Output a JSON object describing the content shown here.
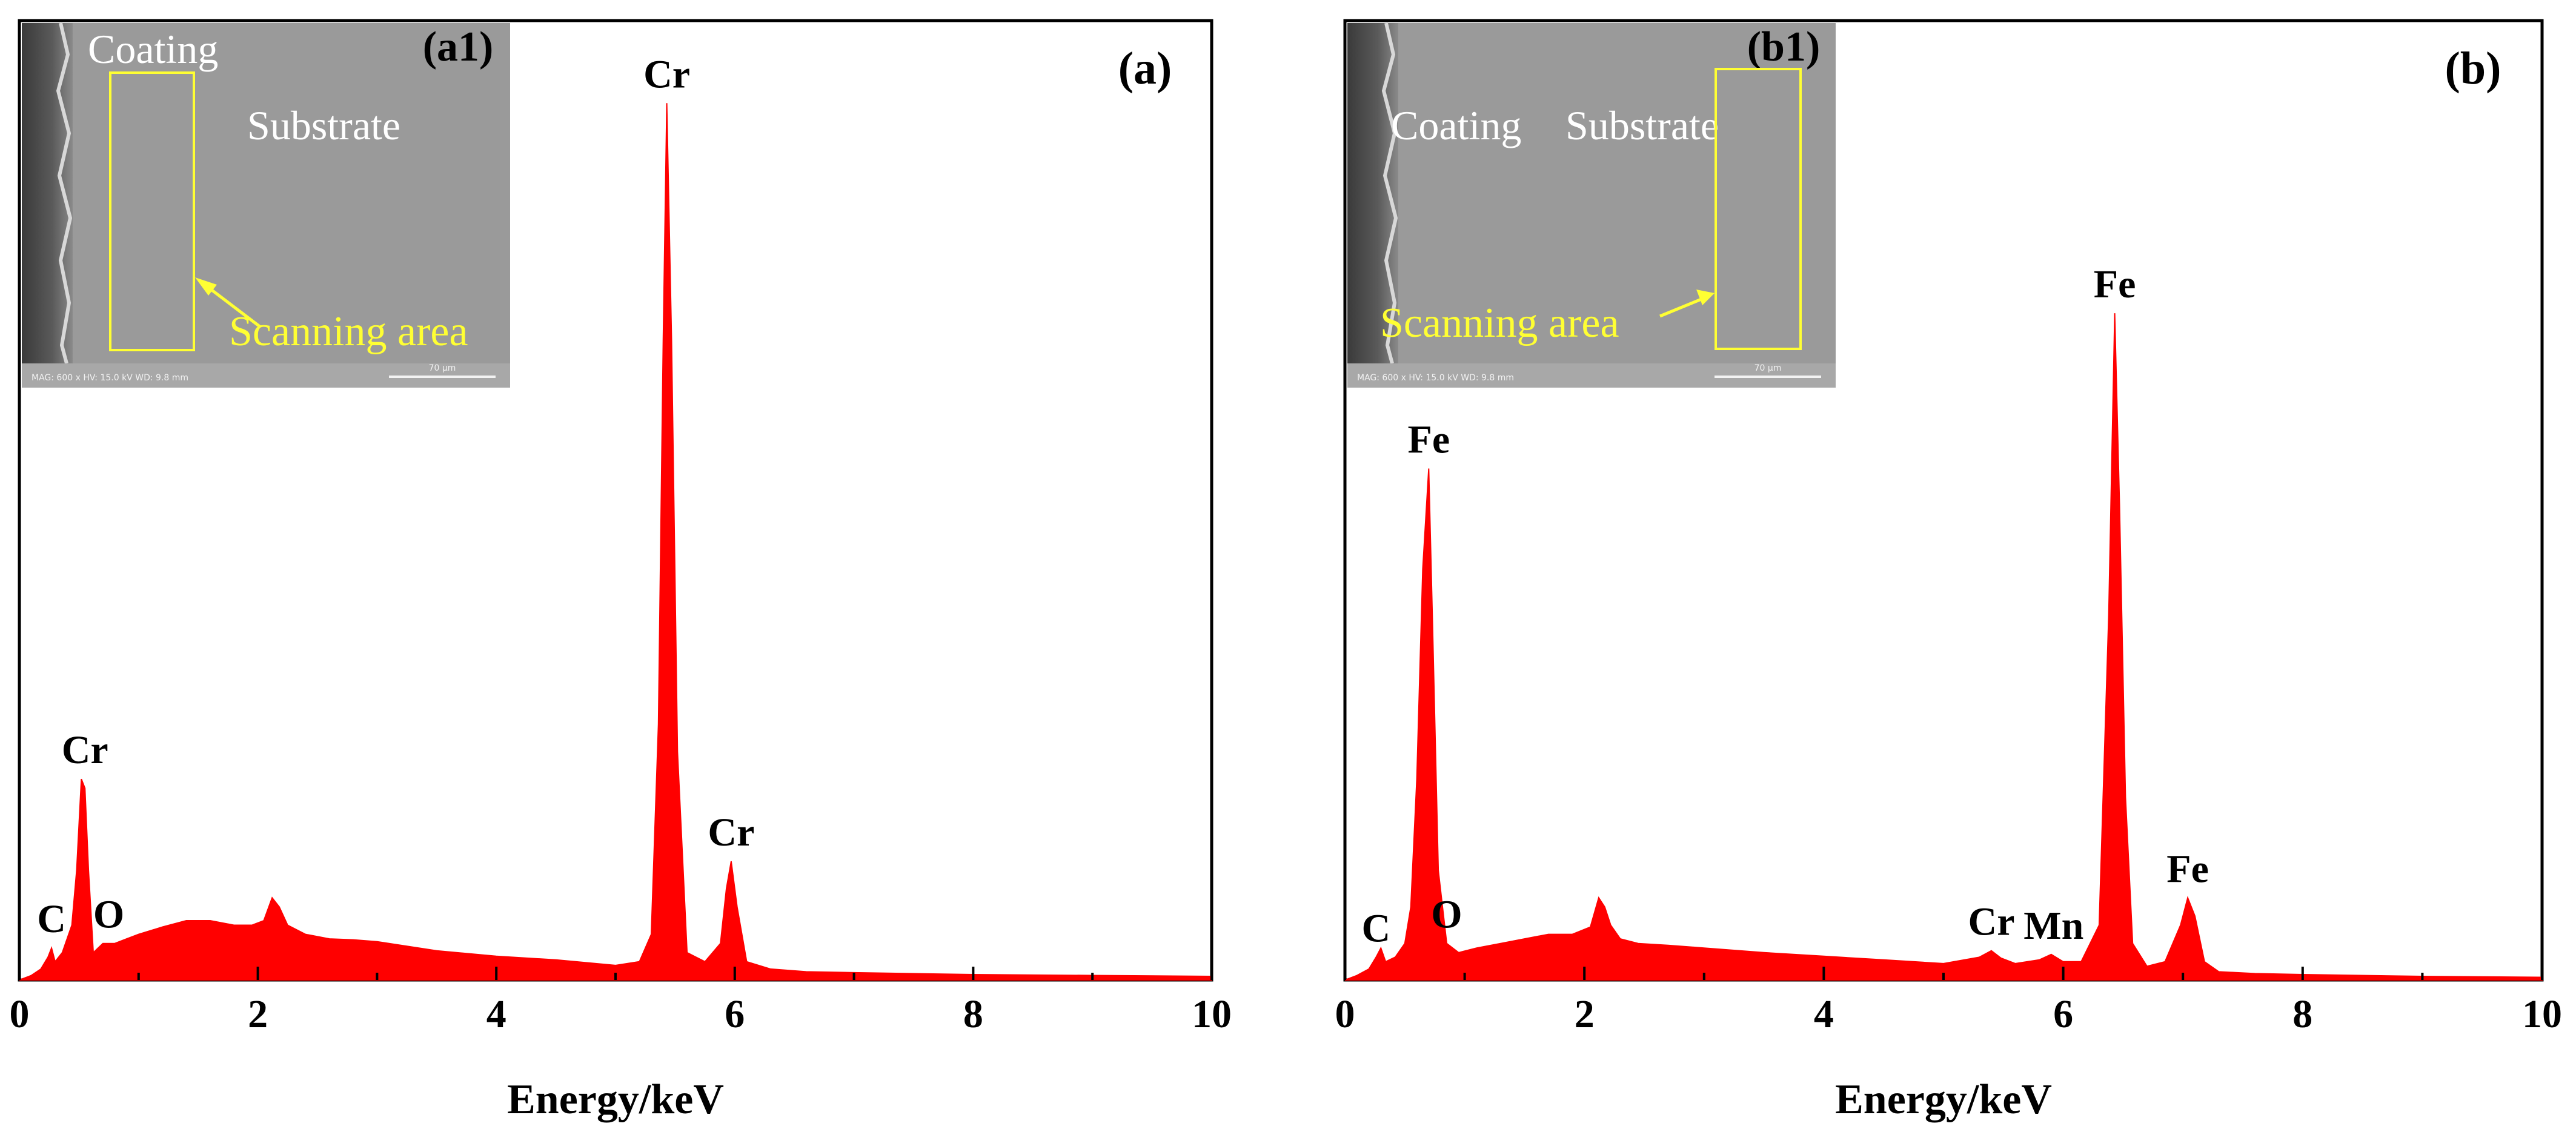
{
  "colors": {
    "spectrum": "#ff0000",
    "annotation": "#ffff33",
    "axis": "#000000",
    "sem_background": "#9a9a9a"
  },
  "chart_data": [
    {
      "type": "area",
      "panel_label": "(a)",
      "xlabel": "Energy/keV",
      "ylabel": "",
      "xlim": [
        0,
        10
      ],
      "xticks": [
        "0",
        "2",
        "4",
        "6",
        "8",
        "10"
      ],
      "ylim": [
        0,
        100
      ],
      "grid": false,
      "series": [
        {
          "name": "",
          "x": [
            0,
            0.1,
            0.18,
            0.24,
            0.27,
            0.3,
            0.36,
            0.44,
            0.48,
            0.52,
            0.55,
            0.58,
            0.62,
            0.7,
            0.8,
            0.9,
            1.0,
            1.2,
            1.4,
            1.6,
            1.8,
            1.95,
            2.05,
            2.12,
            2.18,
            2.25,
            2.4,
            2.6,
            2.8,
            3.0,
            3.5,
            4.0,
            4.5,
            5.0,
            5.2,
            5.3,
            5.36,
            5.4,
            5.43,
            5.47,
            5.52,
            5.6,
            5.75,
            5.88,
            5.93,
            5.97,
            6.02,
            6.1,
            6.3,
            6.6,
            7.0,
            8.0,
            9.0,
            10.0
          ],
          "y": [
            0,
            0.5,
            1.2,
            2.5,
            3.5,
            2,
            3,
            6,
            12,
            22,
            21,
            12,
            3,
            4,
            4,
            4.5,
            5,
            5.8,
            6.5,
            6.5,
            6,
            6,
            6.5,
            9,
            8,
            6,
            5,
            4.5,
            4.4,
            4.2,
            3.2,
            2.6,
            2.2,
            1.6,
            2,
            5,
            28,
            70,
            96,
            70,
            25,
            3,
            2,
            4,
            10,
            13,
            8,
            2,
            1.2,
            0.9,
            0.8,
            0.6,
            0.5,
            0.4
          ]
        }
      ],
      "peak_labels": [
        {
          "text": "C",
          "x": 0.27,
          "y": 3.5
        },
        {
          "text": "O",
          "x": 0.75,
          "y": 4
        },
        {
          "text": "Cr",
          "x": 0.55,
          "y": 22
        },
        {
          "text": "Cr",
          "x": 5.43,
          "y": 96
        },
        {
          "text": "Cr",
          "x": 5.97,
          "y": 13
        }
      ],
      "inset": {
        "label": "(a1)",
        "coating": "Coating",
        "substrate": "Substrate",
        "scan_label": "Scanning area",
        "info": "MAG: 600 x  HV: 15.0 kV  WD: 9.8 mm",
        "scale_bar": "70 μm"
      }
    },
    {
      "type": "area",
      "panel_label": "(b)",
      "xlabel": "Energy/keV",
      "ylabel": "",
      "xlim": [
        0,
        10
      ],
      "xticks": [
        "0",
        "2",
        "4",
        "6",
        "8",
        "10"
      ],
      "ylim": [
        0,
        100
      ],
      "grid": false,
      "series": [
        {
          "name": "",
          "x": [
            0,
            0.1,
            0.2,
            0.26,
            0.3,
            0.34,
            0.42,
            0.5,
            0.55,
            0.6,
            0.65,
            0.7,
            0.73,
            0.78,
            0.85,
            0.95,
            1.1,
            1.3,
            1.5,
            1.7,
            1.9,
            2.05,
            2.12,
            2.17,
            2.22,
            2.3,
            2.45,
            2.7,
            3.0,
            3.5,
            4.0,
            4.5,
            5.0,
            5.3,
            5.4,
            5.48,
            5.6,
            5.8,
            5.9,
            6.0,
            6.15,
            6.3,
            6.38,
            6.43,
            6.47,
            6.52,
            6.58,
            6.7,
            6.85,
            6.98,
            7.04,
            7.1,
            7.18,
            7.3,
            7.6,
            8.0,
            9.0,
            10.0
          ],
          "y": [
            0,
            0.5,
            1.2,
            2.5,
            3.5,
            2,
            2.5,
            4,
            8,
            22,
            45,
            56,
            40,
            12,
            4,
            3,
            3.5,
            4,
            4.5,
            5,
            5,
            5.8,
            9,
            8,
            6,
            4.5,
            4,
            3.8,
            3.5,
            3,
            2.6,
            2.2,
            1.8,
            2.5,
            3.2,
            2.4,
            1.8,
            2.2,
            2.8,
            2,
            2,
            6,
            40,
            73,
            52,
            20,
            4,
            1.5,
            2,
            6,
            9,
            7,
            2,
            0.9,
            0.7,
            0.6,
            0.4,
            0.3
          ]
        }
      ],
      "peak_labels": [
        {
          "text": "C",
          "x": 0.26,
          "y": 2.5
        },
        {
          "text": "O",
          "x": 0.85,
          "y": 4
        },
        {
          "text": "Fe",
          "x": 0.7,
          "y": 56
        },
        {
          "text": "Fe",
          "x": 6.43,
          "y": 73
        },
        {
          "text": "Fe",
          "x": 7.04,
          "y": 9
        },
        {
          "text": "Cr",
          "x": 5.4,
          "y": 3.2
        },
        {
          "text": "Mn",
          "x": 5.92,
          "y": 2.8
        }
      ],
      "inset": {
        "label": "(b1)",
        "coating": "Coating",
        "substrate": "Substrate",
        "scan_label": "Scanning area",
        "info": "MAG: 600 x  HV: 15.0 kV  WD: 9.8 mm",
        "scale_bar": "70 μm"
      }
    }
  ]
}
